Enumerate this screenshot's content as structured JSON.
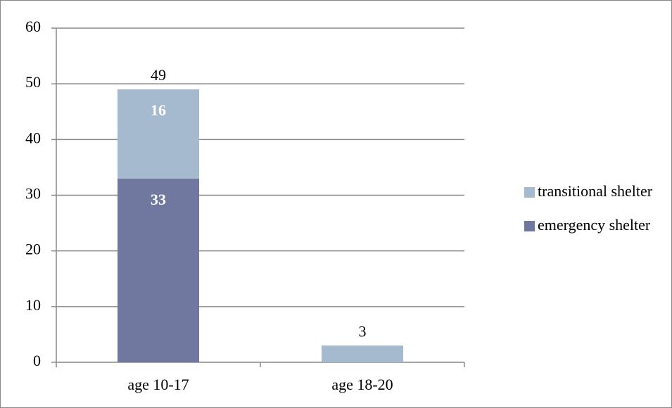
{
  "chart_data": {
    "type": "stacked_bar",
    "categories": [
      "age 10-17",
      "age 18-20"
    ],
    "series": [
      {
        "name": "emergency shelter",
        "color": "#7178a0",
        "values": [
          33,
          0
        ],
        "value_labels": [
          "33",
          null
        ]
      },
      {
        "name": "transitional shelter",
        "color": "#a5b9cf",
        "values": [
          16,
          3
        ],
        "value_labels": [
          "16",
          null
        ]
      }
    ],
    "totals": [
      49,
      3
    ],
    "ylim": [
      0,
      60
    ],
    "yticks": [
      0,
      10,
      20,
      30,
      40,
      50,
      60
    ],
    "grid": true,
    "legend": "right"
  }
}
